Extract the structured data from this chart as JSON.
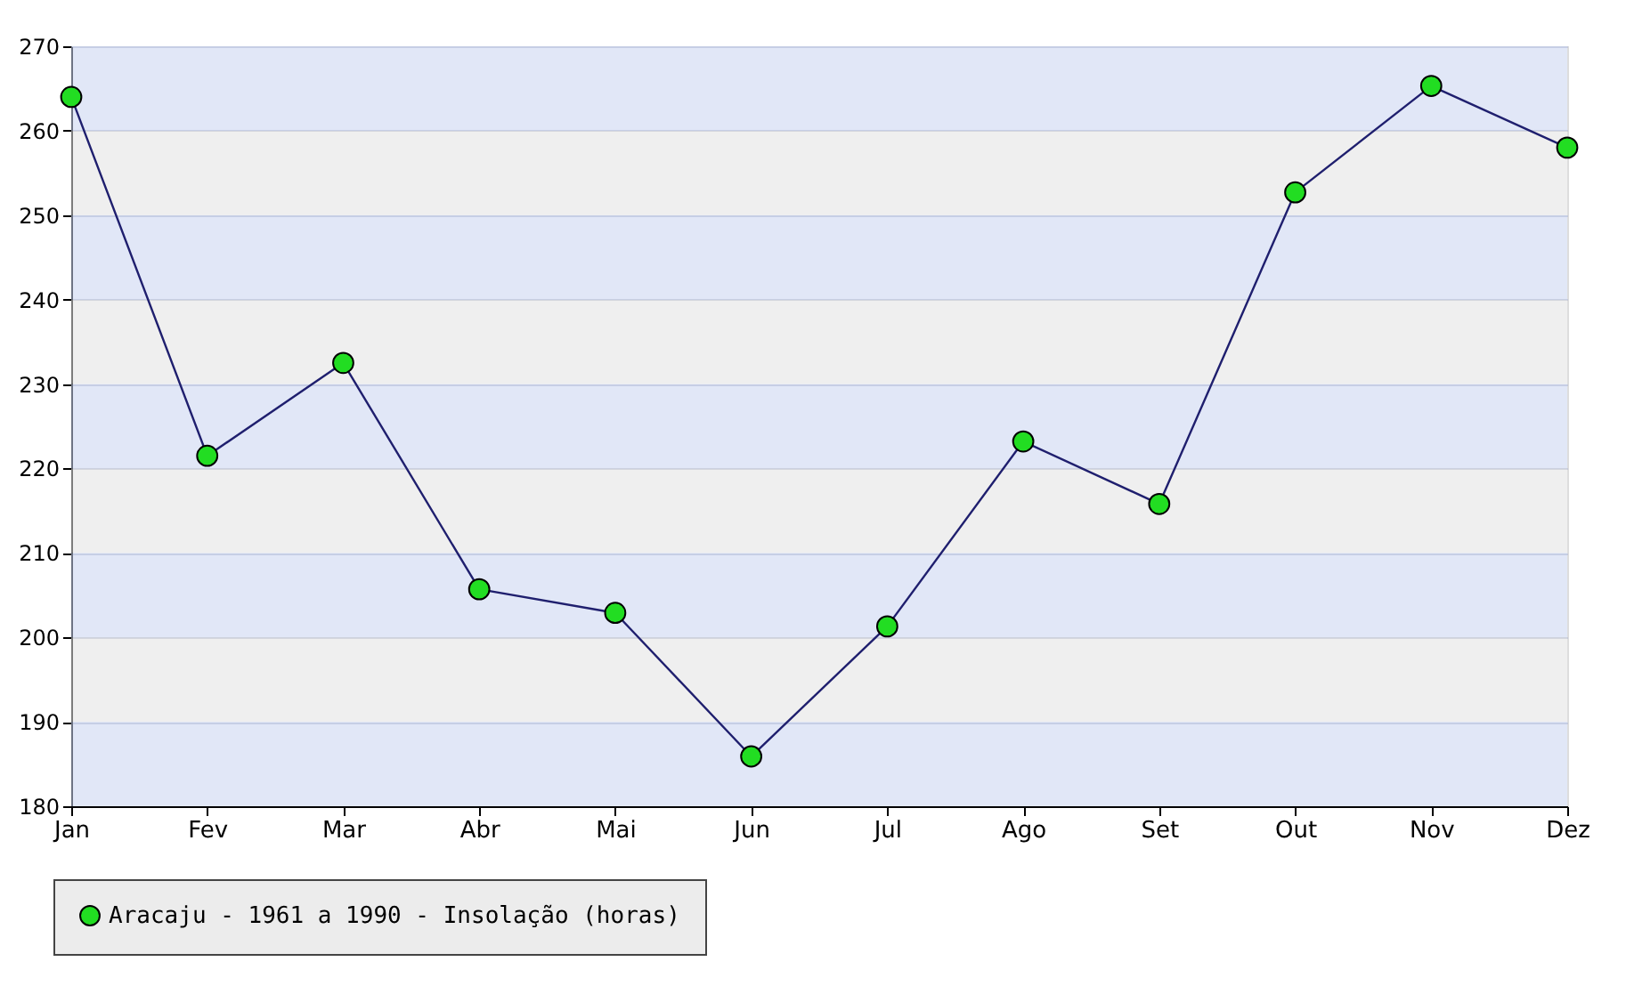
{
  "chart_data": {
    "type": "line",
    "categories": [
      "Jan",
      "Fev",
      "Mar",
      "Abr",
      "Mai",
      "Jun",
      "Jul",
      "Ago",
      "Set",
      "Out",
      "Nov",
      "Dez"
    ],
    "series": [
      {
        "name": "Aracaju - 1961 a 1990 - Insolação (horas)",
        "color": "#22dd22",
        "values": [
          264,
          221.5,
          232.5,
          205.7,
          202.9,
          185.9,
          201.3,
          223.2,
          215.8,
          252.7,
          265.3,
          258
        ]
      }
    ],
    "ylim": [
      180,
      270
    ],
    "yticks": [
      180,
      190,
      200,
      210,
      220,
      230,
      240,
      250,
      260,
      270
    ],
    "grid": "y",
    "legend": "bottom left",
    "marker": "circle",
    "line_style": "solid"
  }
}
